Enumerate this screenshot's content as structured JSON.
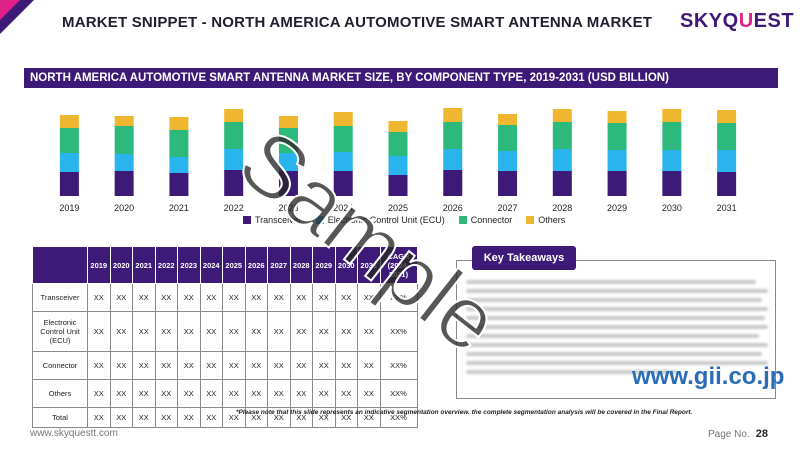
{
  "page_title": "MARKET SNIPPET - NORTH AMERICA AUTOMOTIVE SMART ANTENNA MARKET",
  "logo": {
    "part1": "SKYQ",
    "part2": "U",
    "part3": "EST"
  },
  "banner_title": "NORTH AMERICA AUTOMOTIVE SMART ANTENNA MARKET SIZE,  BY COMPONENT TYPE, 2019-2031 (USD BILLION)",
  "colors": {
    "primary": "#3d1a78",
    "transceiver": "#3d1a78",
    "ecu": "#2ab4ee",
    "connector": "#2db87c",
    "others": "#f0b630"
  },
  "chart_data": {
    "type": "bar",
    "stacked": true,
    "categories": [
      "2019",
      "2020",
      "2021",
      "2022",
      "2023",
      "2024",
      "2025",
      "2026",
      "2027",
      "2028",
      "2029",
      "2030",
      "2031"
    ],
    "series": [
      {
        "name": "Transceiver",
        "values": [
          24,
          25,
          23,
          26,
          25,
          25,
          21,
          26,
          25,
          25,
          25,
          25,
          24
        ]
      },
      {
        "name": "Electronic Control Unit (ECU)",
        "values": [
          19,
          17,
          16,
          21,
          18,
          19,
          19,
          21,
          20,
          22,
          21,
          21,
          22
        ]
      },
      {
        "name": "Connector",
        "values": [
          25,
          28,
          27,
          27,
          25,
          26,
          24,
          27,
          26,
          27,
          27,
          28,
          27
        ]
      },
      {
        "name": "Others",
        "values": [
          13,
          10,
          13,
          13,
          12,
          14,
          11,
          14,
          11,
          13,
          12,
          13,
          13
        ]
      }
    ],
    "ylim": [
      0,
      100
    ],
    "grid": false,
    "legend_position": "bottom"
  },
  "table": {
    "headers": [
      "2019",
      "2020",
      "2021",
      "2022",
      "2023",
      "2024",
      "2025",
      "2026",
      "2027",
      "2028",
      "2029",
      "2030",
      "2031",
      "CAGR (2024-2031)"
    ],
    "rows": [
      {
        "label": "Transceiver",
        "cells": [
          "XX",
          "XX",
          "XX",
          "XX",
          "XX",
          "XX",
          "XX",
          "XX",
          "XX",
          "XX",
          "XX",
          "XX",
          "XX",
          "XX%"
        ]
      },
      {
        "label": "Electronic Control Unit (ECU)",
        "cells": [
          "XX",
          "XX",
          "XX",
          "XX",
          "XX",
          "XX",
          "XX",
          "XX",
          "XX",
          "XX",
          "XX",
          "XX",
          "XX",
          "XX%"
        ]
      },
      {
        "label": "Connector",
        "cells": [
          "XX",
          "XX",
          "XX",
          "XX",
          "XX",
          "XX",
          "XX",
          "XX",
          "XX",
          "XX",
          "XX",
          "XX",
          "XX",
          "XX%"
        ]
      },
      {
        "label": "Others",
        "cells": [
          "XX",
          "XX",
          "XX",
          "XX",
          "XX",
          "XX",
          "XX",
          "XX",
          "XX",
          "XX",
          "XX",
          "XX",
          "XX",
          "XX%"
        ]
      },
      {
        "label": "Total",
        "cells": [
          "XX",
          "XX",
          "XX",
          "XX",
          "XX",
          "XX",
          "XX",
          "XX",
          "XX",
          "XX",
          "XX",
          "XX",
          "XX",
          "XX%"
        ]
      }
    ]
  },
  "key_takeaways_title": "Key Takeaways",
  "note": "*Please note that this slide represents an indicative segmentation overview. the complete segmentation analysis will be covered in the Final Report.",
  "footer_url": "www.skyquestt.com",
  "page_label": "Page No.",
  "page_number": "28",
  "watermark_text": "Sample",
  "watermark_site": "www.gii.co.jp"
}
